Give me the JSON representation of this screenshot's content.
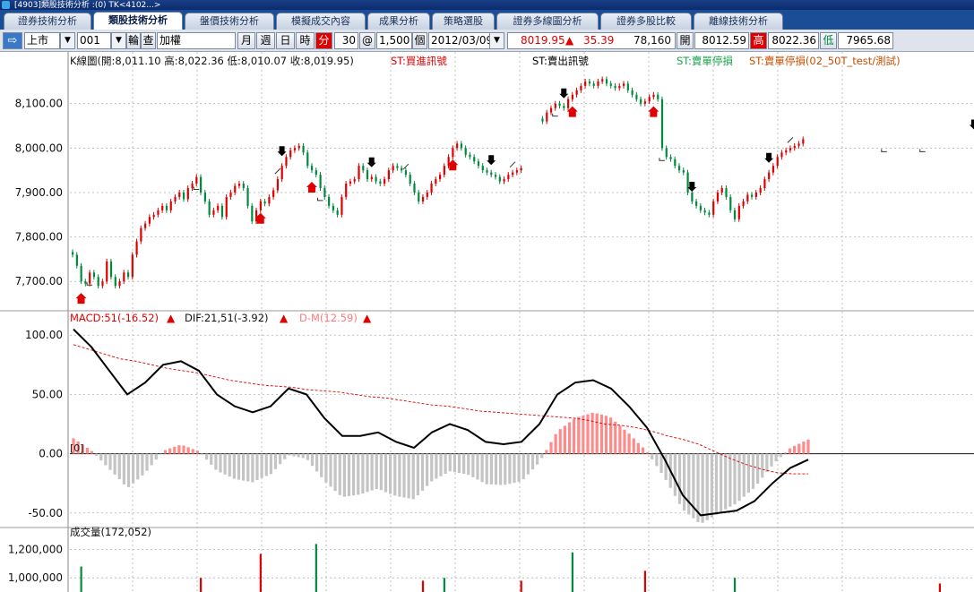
{
  "window": {
    "title": "[4903]類股技術分析 :(0) TK<4102...>"
  },
  "tabs": [
    {
      "label": "證券技術分析",
      "active": false
    },
    {
      "label": "類股技術分析",
      "active": true
    },
    {
      "label": "盤價技術分析",
      "active": false
    },
    {
      "label": "模擬成交內容",
      "active": false
    },
    {
      "label": "成果分析",
      "active": false
    },
    {
      "label": "策略選股",
      "active": false
    },
    {
      "label": "證券多線圖分析",
      "active": false
    },
    {
      "label": "證券多股比較",
      "active": false
    },
    {
      "label": "離線技術分析",
      "active": false
    }
  ],
  "toolbar": {
    "nav_arrow": "⇨",
    "market": "上市",
    "code": "001",
    "rotate_label": "輪",
    "query_label": "查",
    "name": "加權",
    "period_buttons": [
      "月",
      "週",
      "日",
      "時",
      "分"
    ],
    "active_period": "分",
    "minutes": "30",
    "at_label": "@",
    "count": "1,500",
    "count_unit": "個",
    "date": "2012/03/09",
    "dropdown_glyph": "▼"
  },
  "quote": {
    "price": "8019.95",
    "change_arrow": "▲",
    "change": "35.39",
    "volume": "78,160",
    "open_label": "開",
    "open": "8012.59",
    "high_label": "高",
    "high": "8022.36",
    "low_label": "低",
    "low": "7965.68"
  },
  "colors": {
    "up": "#e00000",
    "down": "#008a3c",
    "macd_pos": "#ff8a8a",
    "macd_neg": "#c4c4c4",
    "grid": "#b0b0b0",
    "buy_signal": "#e00000",
    "sell_signal": "#000000",
    "long_stop": "#17a34a",
    "short_stop": "#c84d00"
  },
  "chart_data": [
    {
      "type": "candlestick",
      "title": "K線圖(開:8,011.10 高:8,022.36 低:8,010.07 收:8,019.95)",
      "legend": [
        {
          "name": "ST:買進訊號",
          "color": "#e00000"
        },
        {
          "name": "ST:賣出訊號",
          "color": "#000000"
        },
        {
          "name": "ST:賣單停損",
          "color": "#17a34a"
        },
        {
          "name": "ST:賣單停損(02_50T_test/測試)",
          "color": "#c84d00"
        }
      ],
      "ylim": [
        7640,
        8180
      ],
      "yticks": [
        "8,100.00",
        "8,000.00",
        "7,900.00",
        "7,800.00",
        "7,700.00"
      ],
      "ytick_values": [
        8100,
        8000,
        7900,
        7800,
        7700
      ],
      "grid": true,
      "segments": [
        {
          "break_before": false,
          "closes": [
            7760,
            7735,
            7700,
            7695,
            7720,
            7710,
            7690,
            7700,
            7745,
            7710,
            7690,
            7700,
            7720,
            7710,
            7760,
            7790,
            7820,
            7830,
            7845,
            7850,
            7860,
            7870,
            7860,
            7880,
            7890,
            7900,
            7885,
            7910,
            7920,
            7935,
            7900,
            7880,
            7850,
            7860,
            7870,
            7845,
            7890,
            7900,
            7915,
            7920,
            7910,
            7870,
            7835,
            7860,
            7880,
            7875,
            7890,
            7905,
            7930,
            7960,
            7980,
            7995,
            8000,
            8005,
            7990,
            7960,
            7950,
            7940,
            7910,
            7890,
            7870,
            7860,
            7850,
            7890,
            7920,
            7925,
            7930,
            7960,
            7950,
            7930,
            7935,
            7925,
            7920,
            7930,
            7950,
            7960,
            7955,
            7950,
            7940,
            7920,
            7900,
            7880,
            7890,
            7900,
            7920,
            7930,
            7940,
            7960,
            7980,
            8000,
            8010,
            8000,
            7985,
            7980,
            7970,
            7960,
            7950,
            7945,
            7940,
            7935,
            7925,
            7930,
            7940,
            7945,
            7950,
            7955
          ]
        },
        {
          "break_before": true,
          "closes": [
            8060,
            8080,
            8090,
            8100,
            8095,
            8090,
            8110,
            8120,
            8130,
            8140,
            8150,
            8145,
            8140,
            8150,
            8155,
            8145,
            8140,
            8135,
            8140,
            8145,
            8130,
            8120,
            8110,
            8100,
            8105,
            8115,
            8120,
            8110,
            8000,
            7980,
            7975,
            7960,
            7950,
            7945,
            7900,
            7880,
            7870,
            7860,
            7855,
            7850,
            7880,
            7900,
            7910,
            7890,
            7860,
            7840,
            7870,
            7880,
            7895,
            7890,
            7900,
            7910,
            7930,
            7945,
            7960,
            7980,
            7990,
            7995,
            8000,
            8005,
            8010,
            8020
          ]
        }
      ],
      "buy_signals": [
        2,
        44,
        56,
        89,
        117,
        136
      ],
      "sell_signals": [
        49,
        70,
        98,
        115,
        145,
        163,
        211,
        218,
        248
      ],
      "long_stops": [
        48,
        78,
        103,
        168
      ],
      "short_stops": [
        4,
        29,
        58,
        113,
        138,
        190,
        199,
        228
      ]
    },
    {
      "type": "macd",
      "title": "MACD:51(-16.52)",
      "series": [
        {
          "name": "MACD:51(-16.52)",
          "color": "#e00000",
          "style": "dashed",
          "values": [
            92,
            88,
            84,
            80,
            78,
            75,
            72,
            70,
            68,
            65,
            62,
            60,
            58,
            57,
            56,
            54,
            53,
            52,
            50,
            48,
            47,
            45,
            43,
            41,
            40,
            38,
            36,
            35,
            34,
            33,
            32,
            31,
            30,
            28,
            25,
            24,
            22,
            19,
            15,
            12,
            8,
            2,
            -4,
            -9,
            -13,
            -16,
            -17,
            -17
          ]
        },
        {
          "name": "DIF:21,51(-3.92)",
          "color": "#000000",
          "style": "solid",
          "values": [
            105,
            90,
            70,
            50,
            60,
            75,
            78,
            70,
            50,
            40,
            35,
            40,
            55,
            50,
            30,
            15,
            15,
            18,
            10,
            5,
            18,
            25,
            20,
            10,
            8,
            10,
            25,
            50,
            60,
            62,
            55,
            40,
            22,
            -5,
            -35,
            -52,
            -50,
            -48,
            -40,
            -25,
            -12,
            -5
          ]
        },
        {
          "name": "D-M(12.59)",
          "color": "#ff8a8a",
          "style": "histogram"
        }
      ],
      "ylim": [
        -60,
        110
      ],
      "yticks": [
        "100.00",
        "50.00",
        "0.00",
        "-50.00"
      ],
      "ytick_values": [
        100,
        50,
        0,
        -50
      ],
      "zero_label": "[0]"
    },
    {
      "type": "bar",
      "title": "成交量(172,052)",
      "yticks": [
        "1,200,000",
        "1,000,000"
      ],
      "ytick_values": [
        1200000,
        1000000
      ],
      "ylim": [
        900000,
        1280000
      ],
      "values": [
        {
          "i": 2,
          "v": 1080000,
          "dir": "down"
        },
        {
          "i": 30,
          "v": 1000000,
          "dir": "up"
        },
        {
          "i": 44,
          "v": 1170000,
          "dir": "up"
        },
        {
          "i": 57,
          "v": 1240000,
          "dir": "down"
        },
        {
          "i": 82,
          "v": 980000,
          "dir": "up"
        },
        {
          "i": 87,
          "v": 1000000,
          "dir": "down"
        },
        {
          "i": 105,
          "v": 980000,
          "dir": "up"
        },
        {
          "i": 117,
          "v": 1180000,
          "dir": "down"
        },
        {
          "i": 134,
          "v": 1050000,
          "dir": "up"
        },
        {
          "i": 155,
          "v": 1000000,
          "dir": "down"
        },
        {
          "i": 203,
          "v": 960000,
          "dir": "up"
        },
        {
          "i": 240,
          "v": 960000,
          "dir": "up"
        },
        {
          "i": 255,
          "v": 990000,
          "dir": "down"
        },
        {
          "i": 280,
          "v": 950000,
          "dir": "down"
        }
      ]
    }
  ]
}
